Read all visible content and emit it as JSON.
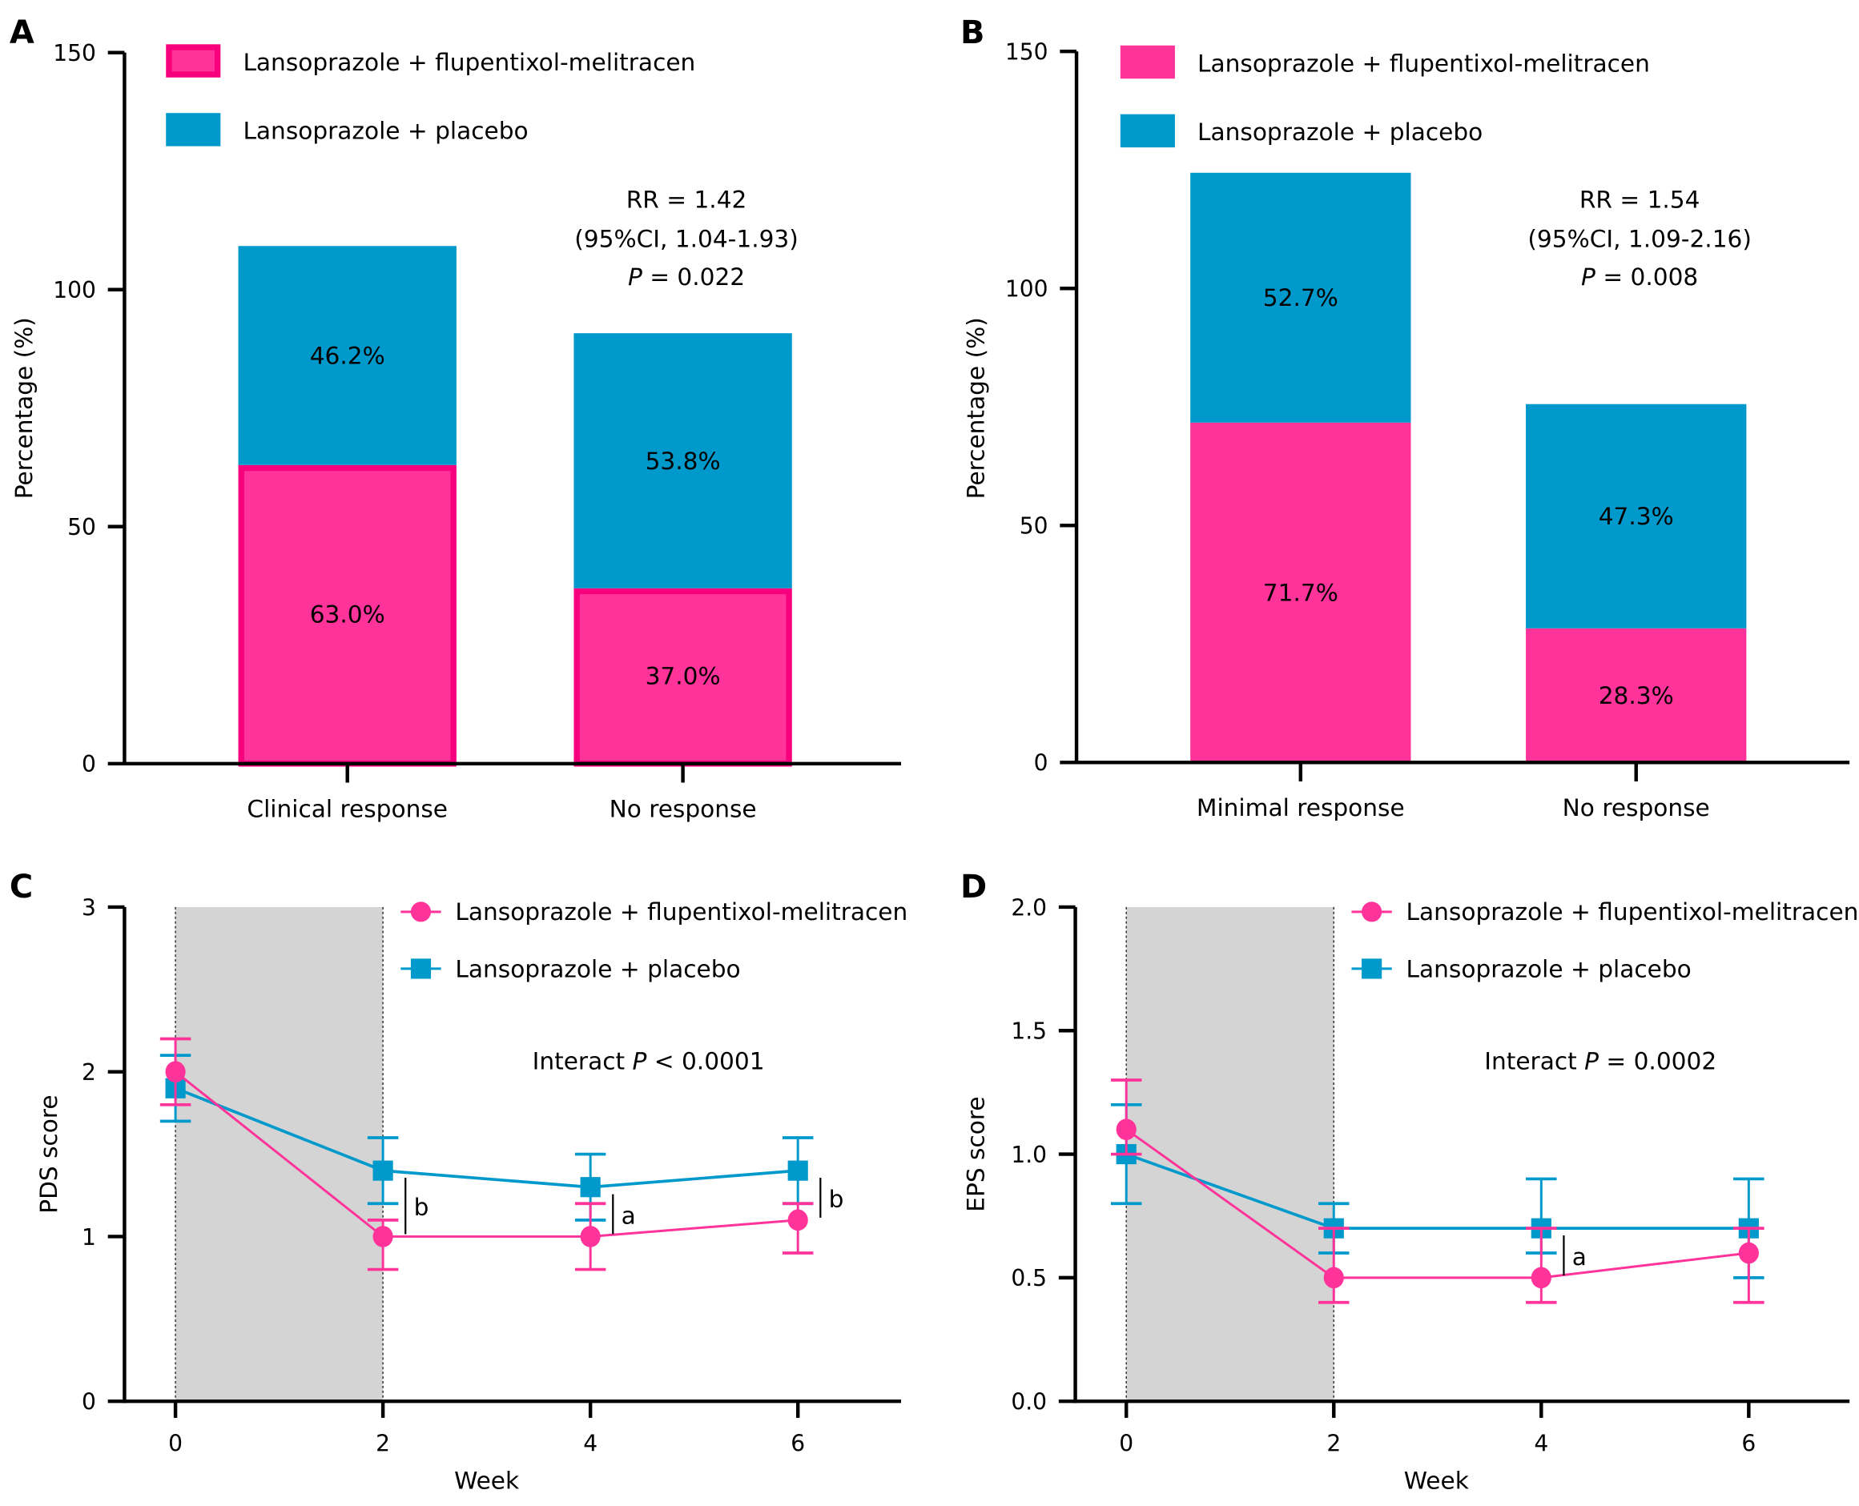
{
  "colors": {
    "pink": "#ff3399",
    "pink_border": "#f7007d",
    "blue": "#0099cc",
    "shade": "#d4d4d4"
  },
  "legend": [
    "Lansoprazole + flupentixol-melitracen",
    "Lansoprazole + placebo"
  ],
  "chart_data": [
    {
      "panel": "A",
      "type": "bar",
      "stacked": true,
      "categories": [
        "Clinical response",
        "No response"
      ],
      "series": [
        {
          "name": "Lansoprazole + flupentixol-melitracen",
          "values": [
            63.0,
            37.0
          ],
          "labels": [
            "63.0%",
            "37.0%"
          ]
        },
        {
          "name": "Lansoprazole + placebo",
          "values": [
            46.2,
            53.8
          ],
          "labels": [
            "46.2%",
            "53.8%"
          ]
        }
      ],
      "ylabel": "Percentage (%)",
      "xlabel": "",
      "ylim": [
        0,
        150
      ],
      "yticks": [
        0,
        50,
        100,
        150
      ],
      "annotation": [
        "RR = 1.42",
        "(95%CI, 1.04-1.93)",
        "P = 0.022"
      ],
      "legend_position": "top-left",
      "grid": false
    },
    {
      "panel": "B",
      "type": "bar",
      "stacked": true,
      "categories": [
        "Minimal response",
        "No response"
      ],
      "series": [
        {
          "name": "Lansoprazole + flupentixol-melitracen",
          "values": [
            71.7,
            28.3
          ],
          "labels": [
            "71.7%",
            "28.3%"
          ]
        },
        {
          "name": "Lansoprazole + placebo",
          "values": [
            52.7,
            47.3
          ],
          "labels": [
            "52.7%",
            "47.3%"
          ]
        }
      ],
      "ylabel": "Percentage (%)",
      "xlabel": "",
      "ylim": [
        0,
        150
      ],
      "yticks": [
        0,
        50,
        100,
        150
      ],
      "annotation": [
        "RR = 1.54",
        "(95%CI, 1.09-2.16)",
        "P = 0.008"
      ],
      "legend_position": "top-left",
      "grid": false
    },
    {
      "panel": "C",
      "type": "line",
      "x": [
        0,
        2,
        4,
        6
      ],
      "series": [
        {
          "name": "Lansoprazole + flupentixol-melitracen",
          "marker": "circle",
          "values": [
            2.0,
            1.0,
            1.0,
            1.1
          ],
          "low": [
            1.8,
            0.8,
            0.8,
            0.9
          ],
          "high": [
            2.2,
            1.1,
            1.2,
            1.2
          ]
        },
        {
          "name": "Lansoprazole + placebo",
          "marker": "square",
          "values": [
            1.9,
            1.4,
            1.3,
            1.4
          ],
          "low": [
            1.7,
            1.2,
            1.1,
            1.2
          ],
          "high": [
            2.1,
            1.6,
            1.5,
            1.6
          ]
        }
      ],
      "xlabel": "Week",
      "ylabel": "PDS score",
      "xlim": [
        -0.5,
        7
      ],
      "ylim": [
        0,
        3
      ],
      "xticks": [
        "0",
        "2",
        "4",
        "6"
      ],
      "yticks": [
        "0",
        "1",
        "2",
        "3"
      ],
      "shaded_region": [
        0,
        2
      ],
      "annotation": "Interact P < 0.0001",
      "significance": [
        {
          "week": 2,
          "label": "b"
        },
        {
          "week": 4,
          "label": "a"
        },
        {
          "week": 6,
          "label": "b"
        }
      ],
      "legend_position": "top-right",
      "grid": false
    },
    {
      "panel": "D",
      "type": "line",
      "x": [
        0,
        2,
        4,
        6
      ],
      "series": [
        {
          "name": "Lansoprazole + flupentixol-melitracen",
          "marker": "circle",
          "values": [
            1.1,
            0.5,
            0.5,
            0.6
          ],
          "low": [
            1.0,
            0.4,
            0.4,
            0.4
          ],
          "high": [
            1.3,
            0.7,
            0.7,
            0.7
          ]
        },
        {
          "name": "Lansoprazole + placebo",
          "marker": "square",
          "values": [
            1.0,
            0.7,
            0.7,
            0.7
          ],
          "low": [
            0.8,
            0.6,
            0.6,
            0.5
          ],
          "high": [
            1.2,
            0.8,
            0.9,
            0.9
          ]
        }
      ],
      "xlabel": "Week",
      "ylabel": "EPS score",
      "xlim": [
        -0.5,
        7
      ],
      "ylim": [
        0,
        2
      ],
      "xticks": [
        "0",
        "2",
        "4",
        "6"
      ],
      "yticks": [
        "0.0",
        "0.5",
        "1.0",
        "1.5",
        "2.0"
      ],
      "shaded_region": [
        0,
        2
      ],
      "annotation": "Interact P = 0.0002",
      "significance": [
        {
          "week": 4,
          "label": "a"
        }
      ],
      "legend_position": "top-right",
      "grid": false
    }
  ]
}
